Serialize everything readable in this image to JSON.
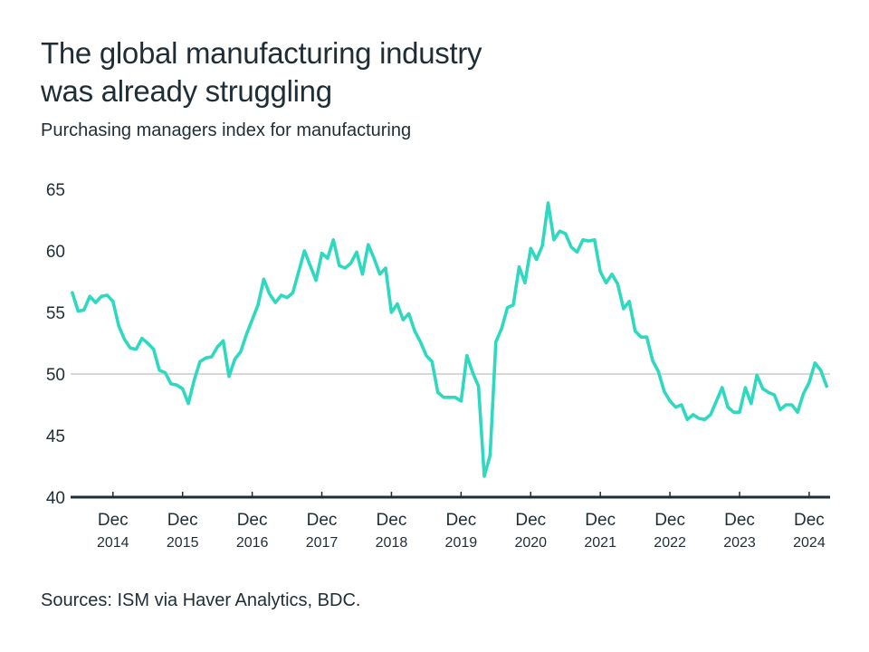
{
  "header": {
    "title_line1": "The global manufacturing industry",
    "title_line2": "was already struggling",
    "subtitle": "Purchasing managers index for manufacturing"
  },
  "footer": {
    "source": "Sources: ISM via Haver Analytics, BDC."
  },
  "colors": {
    "line": "#2fd9c0",
    "axis": "#1f2d36",
    "reference_line": "#d9d6d3",
    "text": "#1f2d36"
  },
  "chart_data": {
    "type": "line",
    "title": "The global manufacturing industry was already struggling",
    "subtitle": "Purchasing managers index for manufacturing",
    "xlabel": "",
    "ylabel": "",
    "x_start": "May 2014",
    "x_end": "Mar 2025",
    "frequency": "monthly",
    "ylim": [
      40,
      65
    ],
    "yticks": [
      40,
      45,
      50,
      55,
      60,
      65
    ],
    "reference_line": 50,
    "grid": false,
    "legend": "none",
    "xticks": [
      {
        "month_index": 7,
        "label": "Dec",
        "year": "2014"
      },
      {
        "month_index": 19,
        "label": "Dec",
        "year": "2015"
      },
      {
        "month_index": 31,
        "label": "Dec",
        "year": "2016"
      },
      {
        "month_index": 43,
        "label": "Dec",
        "year": "2017"
      },
      {
        "month_index": 55,
        "label": "Dec",
        "year": "2018"
      },
      {
        "month_index": 67,
        "label": "Dec",
        "year": "2019"
      },
      {
        "month_index": 79,
        "label": "Dec",
        "year": "2020"
      },
      {
        "month_index": 91,
        "label": "Dec",
        "year": "2021"
      },
      {
        "month_index": 103,
        "label": "Dec",
        "year": "2022"
      },
      {
        "month_index": 115,
        "label": "Dec",
        "year": "2023"
      },
      {
        "month_index": 127,
        "label": "Dec",
        "year": "2024"
      }
    ],
    "x_range_months": [
      -0.3,
      130.6
    ],
    "series": [
      {
        "name": "Manufacturing PMI",
        "values": [
          56.6,
          55.1,
          55.2,
          56.3,
          55.8,
          56.3,
          56.4,
          55.9,
          53.9,
          52.8,
          52.1,
          52.0,
          52.9,
          52.5,
          52.0,
          50.3,
          50.1,
          49.2,
          49.1,
          48.8,
          47.6,
          49.5,
          51.0,
          51.3,
          51.4,
          52.2,
          52.7,
          49.8,
          51.2,
          51.8,
          53.2,
          54.4,
          55.6,
          57.7,
          56.5,
          55.8,
          56.4,
          56.2,
          56.6,
          58.3,
          60.0,
          58.8,
          57.6,
          59.8,
          59.4,
          60.9,
          58.8,
          58.6,
          59.0,
          59.9,
          58.1,
          60.5,
          59.4,
          58.1,
          58.6,
          55.0,
          55.7,
          54.4,
          54.9,
          53.5,
          52.6,
          51.5,
          51.0,
          48.5,
          48.1,
          48.1,
          48.1,
          47.8,
          51.5,
          50.1,
          49.0,
          41.7,
          43.4,
          52.6,
          53.7,
          55.4,
          55.6,
          58.7,
          57.4,
          60.2,
          59.3,
          60.4,
          63.9,
          60.9,
          61.6,
          61.4,
          60.3,
          59.9,
          60.9,
          60.8,
          60.9,
          58.3,
          57.4,
          58.1,
          57.3,
          55.3,
          55.9,
          53.5,
          53.0,
          53.0,
          51.1,
          50.2,
          48.6,
          47.8,
          47.3,
          47.5,
          46.3,
          46.7,
          46.4,
          46.3,
          46.7,
          47.8,
          48.9,
          47.3,
          46.9,
          46.9,
          48.9,
          47.6,
          49.9,
          48.8,
          48.5,
          48.3,
          47.1,
          47.5,
          47.5,
          46.9,
          48.4,
          49.3,
          50.9,
          50.3,
          49.0
        ]
      }
    ]
  }
}
